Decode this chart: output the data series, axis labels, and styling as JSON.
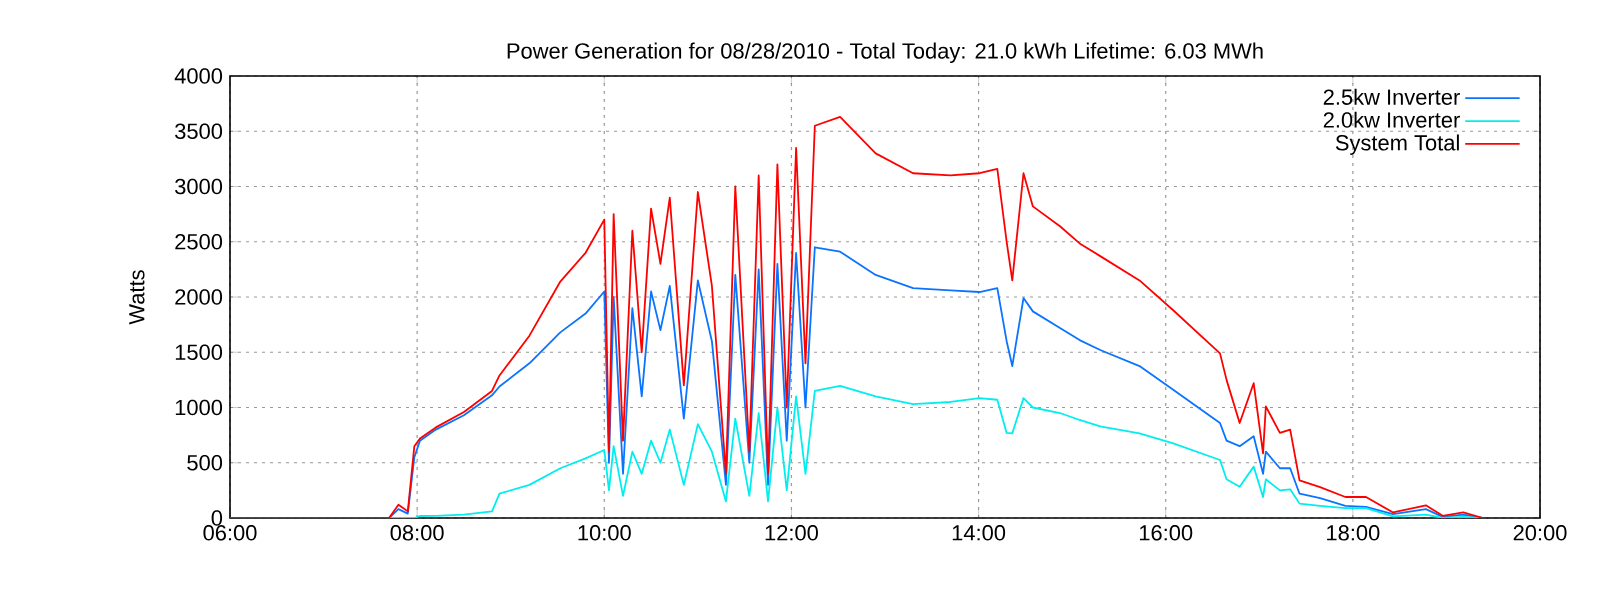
{
  "chart_data": {
    "type": "line",
    "title": "Power Generation for 08/28/2010 - Total Today: 21.0 kWh   Lifetime: 6.03 MWh",
    "ylabel": "Watts",
    "x": [
      6.0,
      7.7,
      7.8,
      7.9,
      7.97,
      8.03,
      8.2,
      8.5,
      8.8,
      8.88,
      9.2,
      9.53,
      9.8,
      10.0,
      10.05,
      10.1,
      10.2,
      10.3,
      10.4,
      10.5,
      10.6,
      10.7,
      10.85,
      11.0,
      11.15,
      11.3,
      11.4,
      11.55,
      11.65,
      11.75,
      11.85,
      11.95,
      12.05,
      12.15,
      12.25,
      12.52,
      12.9,
      13.3,
      13.7,
      14.01,
      14.2,
      14.3,
      14.36,
      14.48,
      14.58,
      14.87,
      15.08,
      15.3,
      15.72,
      16.08,
      16.58,
      16.65,
      16.79,
      16.94,
      17.04,
      17.07,
      17.22,
      17.33,
      17.43,
      17.65,
      17.92,
      18.14,
      18.43,
      18.78,
      18.96,
      19.18,
      19.39
    ],
    "series": [
      {
        "name": "2.5kw Inverter",
        "color": "#0a74ff",
        "values": [
          0,
          0,
          80,
          40,
          550,
          700,
          800,
          930,
          1110,
          1190,
          1400,
          1680,
          1850,
          2050,
          500,
          2000,
          400,
          1900,
          1100,
          2050,
          1700,
          2100,
          900,
          2150,
          1600,
          300,
          2200,
          500,
          2250,
          300,
          2300,
          700,
          2400,
          1000,
          2450,
          2410,
          2200,
          2080,
          2060,
          2045,
          2080,
          1600,
          1375,
          1990,
          1870,
          1720,
          1610,
          1520,
          1375,
          1160,
          860,
          700,
          650,
          740,
          400,
          600,
          450,
          450,
          220,
          180,
          110,
          100,
          35,
          80,
          10,
          30,
          0
        ]
      },
      {
        "name": "2.0kw Inverter",
        "color": "#00eeee",
        "values": [
          0,
          0,
          0,
          0,
          0,
          18,
          20,
          30,
          60,
          220,
          300,
          450,
          540,
          615,
          250,
          650,
          200,
          600,
          400,
          700,
          500,
          800,
          300,
          850,
          600,
          150,
          900,
          200,
          950,
          150,
          1000,
          250,
          1100,
          400,
          1150,
          1195,
          1100,
          1030,
          1050,
          1085,
          1070,
          770,
          766,
          1085,
          1000,
          950,
          887,
          830,
          766,
          676,
          525,
          350,
          283,
          465,
          190,
          350,
          250,
          260,
          130,
          110,
          90,
          90,
          15,
          30,
          0,
          10,
          0
        ]
      },
      {
        "name": "System Total",
        "color": "#ff0000",
        "values": [
          0,
          0,
          120,
          60,
          650,
          720,
          820,
          960,
          1150,
          1290,
          1650,
          2140,
          2400,
          2700,
          600,
          2750,
          700,
          2600,
          1500,
          2800,
          2300,
          2900,
          1200,
          2950,
          2100,
          400,
          3000,
          600,
          3100,
          400,
          3200,
          1000,
          3350,
          1400,
          3550,
          3630,
          3300,
          3120,
          3100,
          3120,
          3160,
          2500,
          2150,
          3120,
          2820,
          2640,
          2485,
          2370,
          2150,
          1880,
          1490,
          1250,
          860,
          1220,
          585,
          1010,
          770,
          800,
          340,
          280,
          190,
          190,
          50,
          115,
          20,
          50,
          0
        ]
      }
    ],
    "xlim": [
      6,
      20
    ],
    "xticks": [
      {
        "value": 6,
        "label": "06:00"
      },
      {
        "value": 8,
        "label": "08:00"
      },
      {
        "value": 10,
        "label": "10:00"
      },
      {
        "value": 12,
        "label": "12:00"
      },
      {
        "value": 14,
        "label": "14:00"
      },
      {
        "value": 16,
        "label": "16:00"
      },
      {
        "value": 18,
        "label": "18:00"
      },
      {
        "value": 20,
        "label": "20:00"
      }
    ],
    "ylim": [
      0,
      4000
    ],
    "yticks": [
      0,
      500,
      1000,
      1500,
      2000,
      2500,
      3000,
      3500,
      4000
    ],
    "grid": true,
    "legend": "top right"
  }
}
